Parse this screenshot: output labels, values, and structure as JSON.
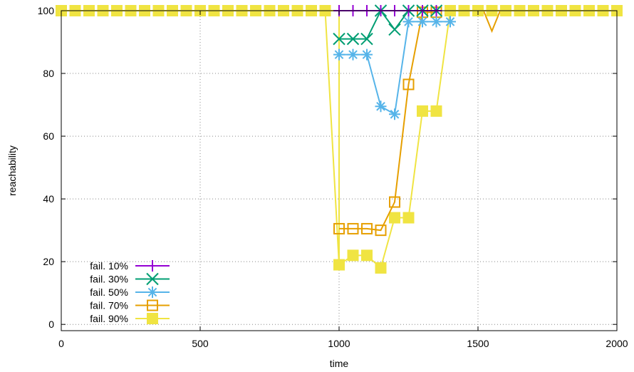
{
  "chart_data": {
    "type": "line",
    "title": "",
    "xlabel": "time",
    "ylabel": "reachability",
    "xlim": [
      0,
      2000
    ],
    "ylim": [
      -2,
      100
    ],
    "xticks": [
      0,
      500,
      1000,
      1500,
      2000
    ],
    "yticks": [
      0,
      20,
      40,
      60,
      80,
      100
    ],
    "grid": true,
    "legend_position": "bottom-left",
    "series": [
      {
        "name": "fail. 10%",
        "color": "#9400d3",
        "marker": "plus",
        "points": [
          [
            1000,
            100
          ],
          [
            1050,
            100
          ],
          [
            1100,
            100
          ],
          [
            1150,
            100
          ],
          [
            1200,
            100
          ],
          [
            1250,
            100
          ],
          [
            1300,
            100
          ],
          [
            1350,
            100
          ]
        ]
      },
      {
        "name": "fail. 30%",
        "color": "#009e73",
        "marker": "cross",
        "points": [
          [
            1000,
            91
          ],
          [
            1050,
            91
          ],
          [
            1100,
            91
          ],
          [
            1150,
            100
          ],
          [
            1200,
            94
          ],
          [
            1250,
            100
          ],
          [
            1300,
            100
          ],
          [
            1350,
            100
          ]
        ]
      },
      {
        "name": "fail. 50%",
        "color": "#56b4e9",
        "marker": "asterisk",
        "points": [
          [
            1000,
            86
          ],
          [
            1050,
            86
          ],
          [
            1100,
            86
          ],
          [
            1150,
            69.5
          ],
          [
            1200,
            67
          ],
          [
            1250,
            96.5
          ],
          [
            1300,
            96.5
          ],
          [
            1350,
            96.5
          ],
          [
            1400,
            96.5
          ]
        ]
      },
      {
        "name": "fail. 70%",
        "color": "#e69f00",
        "marker": "open-square",
        "points": [
          [
            1000,
            30.5
          ],
          [
            1050,
            30.5
          ],
          [
            1100,
            30.5
          ],
          [
            1150,
            30
          ],
          [
            1200,
            39
          ],
          [
            1250,
            76.5
          ],
          [
            1300,
            99.5
          ],
          [
            1350,
            99.5
          ]
        ]
      },
      {
        "name": "fail. 90%",
        "color": "#f0e442",
        "marker": "filled-square",
        "points": [
          [
            0,
            100
          ],
          [
            50,
            100
          ],
          [
            100,
            100
          ],
          [
            150,
            100
          ],
          [
            200,
            100
          ],
          [
            250,
            100
          ],
          [
            300,
            100
          ],
          [
            350,
            100
          ],
          [
            400,
            100
          ],
          [
            450,
            100
          ],
          [
            500,
            100
          ],
          [
            550,
            100
          ],
          [
            600,
            100
          ],
          [
            650,
            100
          ],
          [
            700,
            100
          ],
          [
            750,
            100
          ],
          [
            800,
            100
          ],
          [
            850,
            100
          ],
          [
            900,
            100
          ],
          [
            950,
            100
          ],
          [
            1000,
            19
          ],
          [
            1050,
            22
          ],
          [
            1100,
            22
          ],
          [
            1150,
            18
          ],
          [
            1200,
            34
          ],
          [
            1250,
            34
          ],
          [
            1300,
            68
          ],
          [
            1350,
            68
          ],
          [
            1400,
            100
          ],
          [
            1450,
            100
          ],
          [
            1500,
            100
          ],
          [
            1550,
            100
          ],
          [
            1600,
            100
          ],
          [
            1650,
            100
          ],
          [
            1700,
            100
          ],
          [
            1750,
            100
          ],
          [
            1800,
            100
          ],
          [
            1850,
            100
          ],
          [
            1900,
            100
          ],
          [
            1950,
            100
          ],
          [
            2000,
            100
          ]
        ]
      }
    ],
    "extra_segments": [
      {
        "series": "fail. 90%",
        "points": [
          [
            0,
            100
          ],
          [
            950,
            100
          ],
          [
            1000,
            100
          ],
          [
            1000,
            19
          ]
        ]
      },
      {
        "series": "fail. 70%",
        "points": [
          [
            1520,
            100
          ],
          [
            1550,
            93.5
          ],
          [
            1580,
            100
          ]
        ]
      }
    ]
  }
}
